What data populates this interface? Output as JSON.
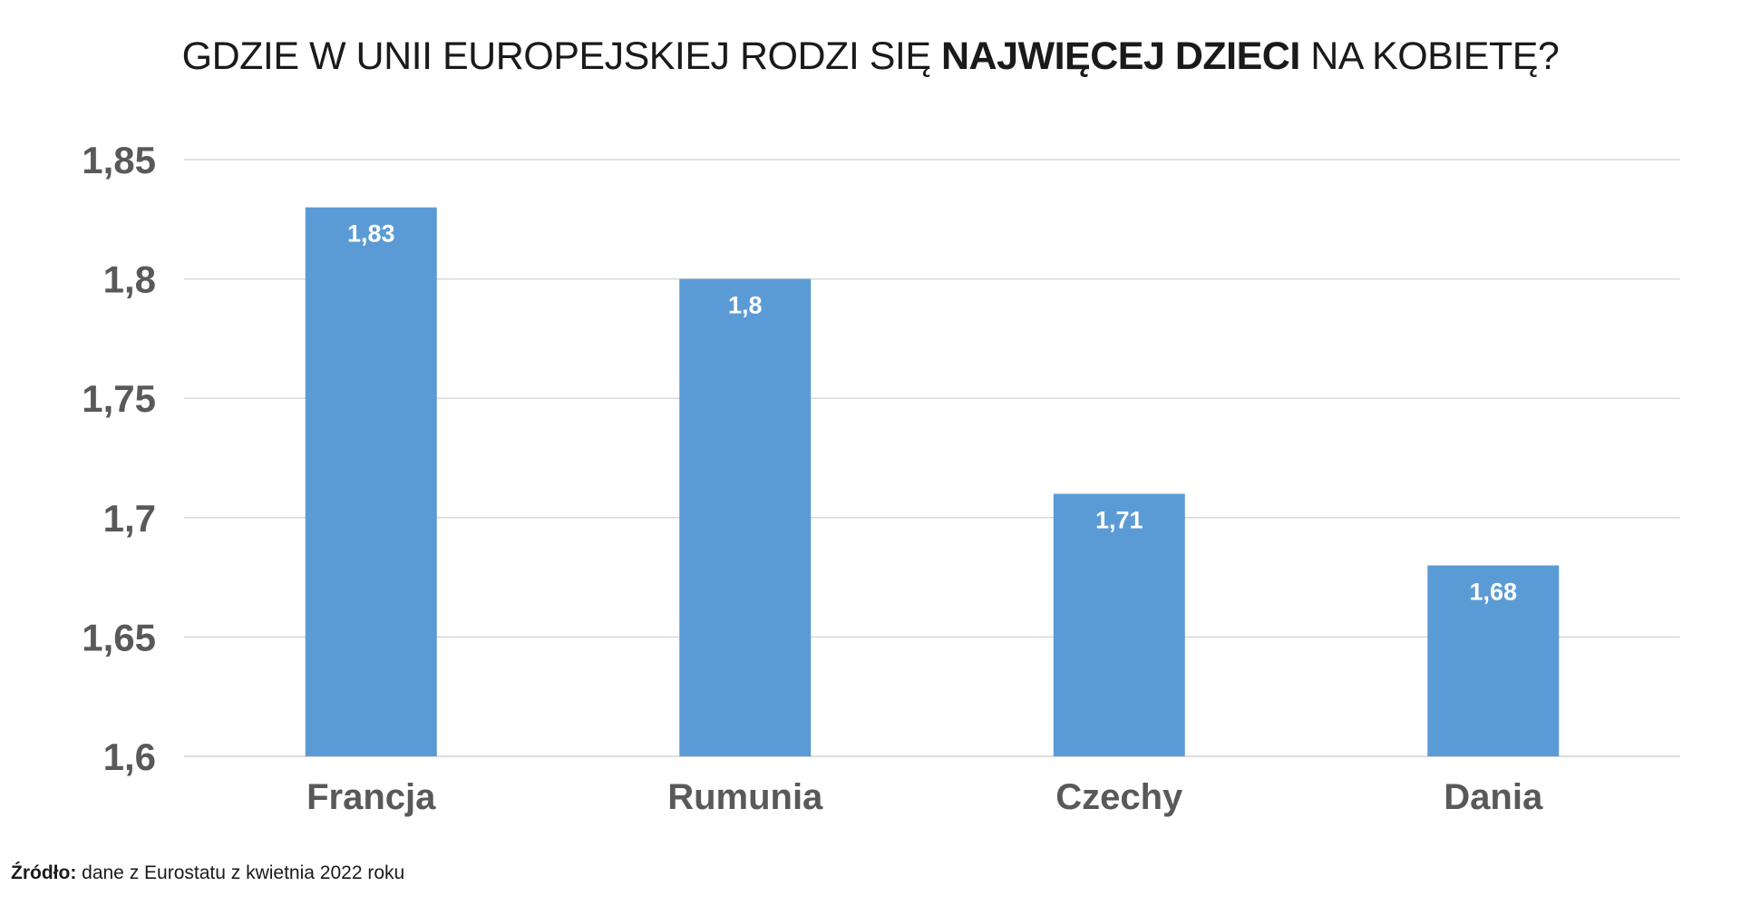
{
  "title": {
    "part1": "GDZIE W UNII EUROPEJSKIEJ RODZI SIĘ ",
    "part2_bold": "NAJWIĘCEJ DZIECI",
    "part3": " NA KOBIETĘ?"
  },
  "source": {
    "label": "Źródło:",
    "text": " dane z Eurostatu z kwietnia 2022 roku"
  },
  "colors": {
    "bar": "#5b9bd5",
    "grid": "#d9d9d9",
    "axis_text": "#595959",
    "data_label": "#ffffff"
  },
  "chart_data": {
    "type": "bar",
    "title": "GDZIE W UNII EUROPEJSKIEJ RODZI SIĘ NAJWIĘCEJ DZIECI NA KOBIETĘ?",
    "categories": [
      "Francja",
      "Rumunia",
      "Czechy",
      "Dania"
    ],
    "values": [
      1.83,
      1.8,
      1.71,
      1.68
    ],
    "data_labels": [
      "1,83",
      "1,8",
      "1,71",
      "1,68"
    ],
    "xlabel": "",
    "ylabel": "",
    "ylim": [
      1.6,
      1.85
    ],
    "yticks": [
      1.6,
      1.65,
      1.7,
      1.75,
      1.8,
      1.85
    ],
    "ytick_labels": [
      "1,6",
      "1,65",
      "1,7",
      "1,75",
      "1,8",
      "1,85"
    ],
    "grid": true,
    "legend": "none"
  }
}
